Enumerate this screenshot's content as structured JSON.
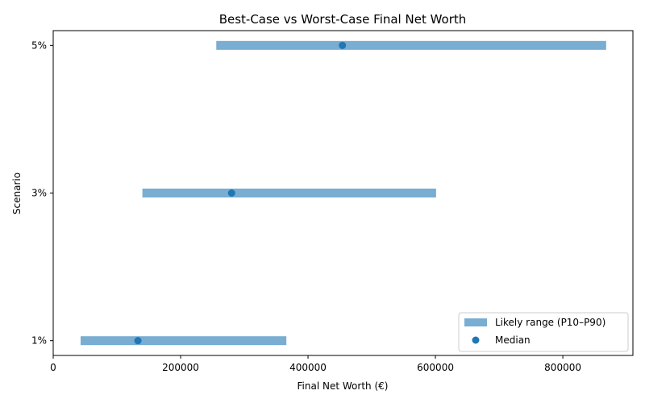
{
  "chart_data": {
    "type": "range-bar",
    "title": "Best-Case vs Worst-Case Final Net Worth",
    "xlabel": "Final Net Worth (€)",
    "ylabel": "Scenario",
    "categories": [
      "1%",
      "3%",
      "5%"
    ],
    "series": [
      {
        "name": "Likely range (P10–P90)",
        "low": [
          43000,
          140000,
          256000
        ],
        "high": [
          366000,
          601000,
          868000
        ],
        "color": "#79add2"
      },
      {
        "name": "Median",
        "values": [
          133000,
          280000,
          454000
        ],
        "color": "#1f77b4"
      }
    ],
    "xticks": [
      "0",
      "200000",
      "400000",
      "600000",
      "800000"
    ],
    "xtick_values": [
      0,
      200000,
      400000,
      600000,
      800000
    ],
    "xlim": [
      0,
      910000
    ],
    "grid": false,
    "legend": "bottom-right"
  }
}
